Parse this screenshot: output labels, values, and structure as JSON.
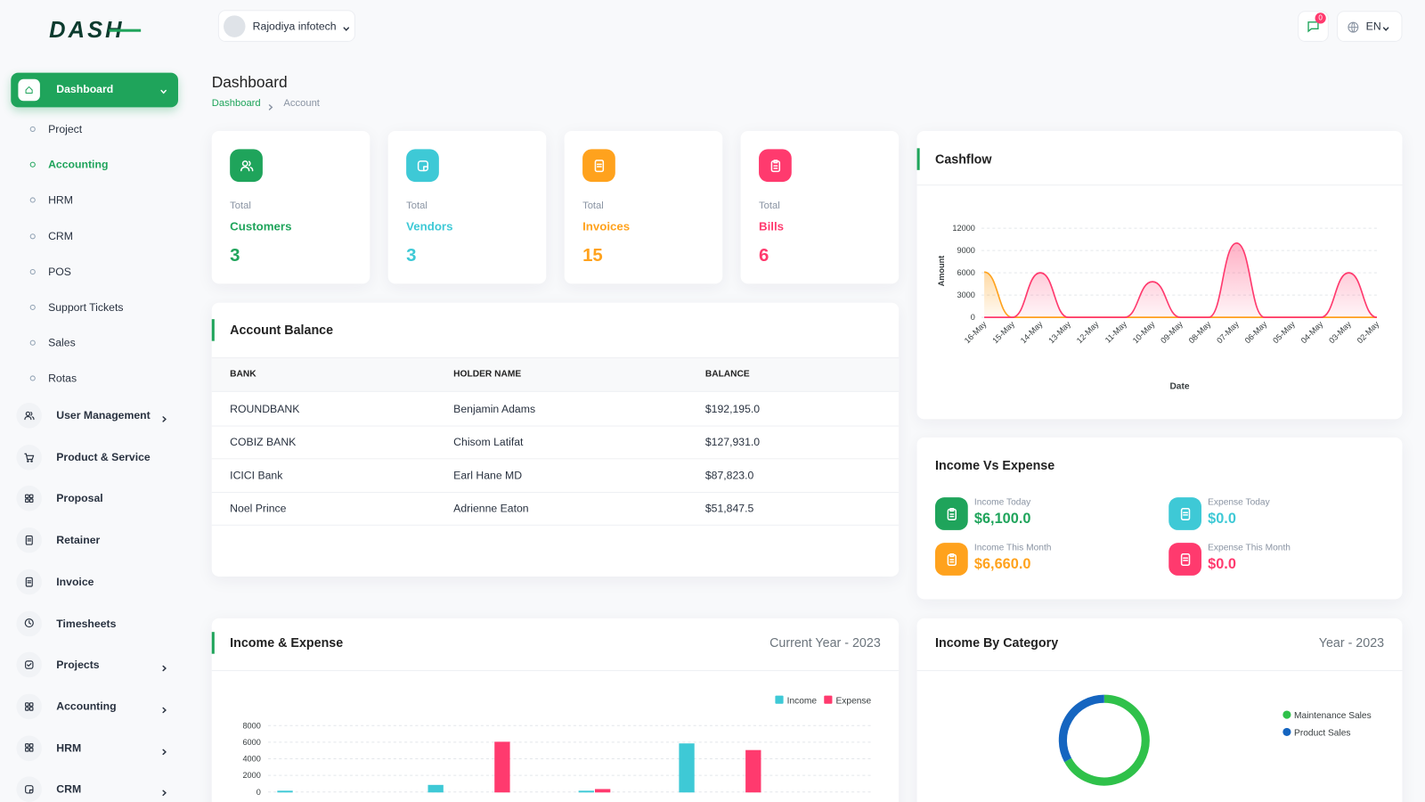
{
  "brand": "DASH",
  "header": {
    "company": "Rajodiya infotech",
    "notifications": 0,
    "language": "EN"
  },
  "sidebar": {
    "active": "Dashboard",
    "submenu": [
      "Project",
      "Accounting",
      "HRM",
      "CRM",
      "POS",
      "Support Tickets",
      "Sales",
      "Rotas"
    ],
    "submenu_active": 1,
    "menu": [
      {
        "label": "User Management",
        "expandable": true
      },
      {
        "label": "Product & Service",
        "expandable": false
      },
      {
        "label": "Proposal",
        "expandable": false
      },
      {
        "label": "Retainer",
        "expandable": false
      },
      {
        "label": "Invoice",
        "expandable": false
      },
      {
        "label": "Timesheets",
        "expandable": false
      },
      {
        "label": "Projects",
        "expandable": true
      },
      {
        "label": "Accounting",
        "expandable": true
      },
      {
        "label": "HRM",
        "expandable": true
      },
      {
        "label": "CRM",
        "expandable": true
      }
    ]
  },
  "page": {
    "title": "Dashboard",
    "breadcrumb": [
      "Dashboard",
      "Account"
    ]
  },
  "stats": [
    {
      "label": "Total",
      "name": "Customers",
      "value": 3,
      "color": "#1fa45b"
    },
    {
      "label": "Total",
      "name": "Vendors",
      "value": 3,
      "color": "#3ec9d6"
    },
    {
      "label": "Total",
      "name": "Invoices",
      "value": 15,
      "color": "#ffa21d"
    },
    {
      "label": "Total",
      "name": "Bills",
      "value": 6,
      "color": "#ff3a6e"
    }
  ],
  "account_balance": {
    "title": "Account Balance",
    "columns": [
      "BANK",
      "HOLDER NAME",
      "BALANCE"
    ],
    "rows": [
      [
        "ROUNDBANK",
        "Benjamin Adams",
        "$192,195.0"
      ],
      [
        "COBIZ BANK",
        "Chisom Latifat",
        "$127,931.0"
      ],
      [
        "ICICI Bank",
        "Earl Hane MD",
        "$87,823.0"
      ],
      [
        "Noel Prince",
        "Adrienne Eaton",
        "$51,847.5"
      ]
    ]
  },
  "income_vs_expense": {
    "title": "Income Vs Expense",
    "items": [
      {
        "label": "Income Today",
        "value": "$6,100.0",
        "color": "#1fa45b"
      },
      {
        "label": "Expense Today",
        "value": "$0.0",
        "color": "#3ec9d6"
      },
      {
        "label": "Income This Month",
        "value": "$6,660.0",
        "color": "#ffa21d"
      },
      {
        "label": "Expense This Month",
        "value": "$0.0",
        "color": "#ff3a6e"
      }
    ]
  },
  "chart_data": [
    {
      "type": "area",
      "title": "Cashflow",
      "x_label": "Date",
      "y_label": "Amount",
      "categories": [
        "16-May",
        "15-May",
        "14-May",
        "13-May",
        "12-May",
        "11-May",
        "10-May",
        "09-May",
        "08-May",
        "07-May",
        "06-May",
        "05-May",
        "04-May",
        "03-May",
        "02-May"
      ],
      "series": [
        {
          "color": "#ffa21d",
          "values": [
            6100,
            0,
            0,
            0,
            0,
            0,
            0,
            0,
            0,
            0,
            0,
            0,
            0,
            0,
            0
          ]
        },
        {
          "color": "#ff3a6e",
          "values": [
            0,
            0,
            6000,
            0,
            0,
            0,
            4800,
            0,
            0,
            10000,
            0,
            0,
            0,
            6000,
            0
          ]
        }
      ],
      "ylim": [
        0,
        12000
      ],
      "yticks": [
        0,
        3000,
        6000,
        9000,
        12000
      ],
      "grid": true
    },
    {
      "type": "bar",
      "title": "Income & Expense",
      "subtitle": "Current Year - 2023",
      "categories": [
        null,
        null,
        null,
        null,
        null,
        null,
        null,
        null,
        null,
        null,
        null,
        null
      ],
      "series": [
        {
          "name": "Income",
          "color": "#3ec9d6",
          "values": [
            100,
            0,
            0,
            800,
            0,
            0,
            100,
            0,
            5800,
            0,
            0,
            0
          ]
        },
        {
          "name": "Expense",
          "color": "#ff3a6e",
          "values": [
            0,
            0,
            0,
            0,
            6000,
            0,
            300,
            0,
            0,
            5000,
            0,
            0
          ]
        }
      ],
      "ylim": [
        0,
        8000
      ],
      "yticks": [
        0,
        2000,
        4000,
        6000,
        8000
      ],
      "grid": true
    },
    {
      "type": "donut",
      "title": "Income By Category",
      "subtitle": "Year - 2023",
      "categories": [
        "Maintenance Sales",
        "Product Sales"
      ],
      "values": [
        67,
        33
      ],
      "colors": [
        "#2fc14a",
        "#1565c0"
      ]
    }
  ]
}
